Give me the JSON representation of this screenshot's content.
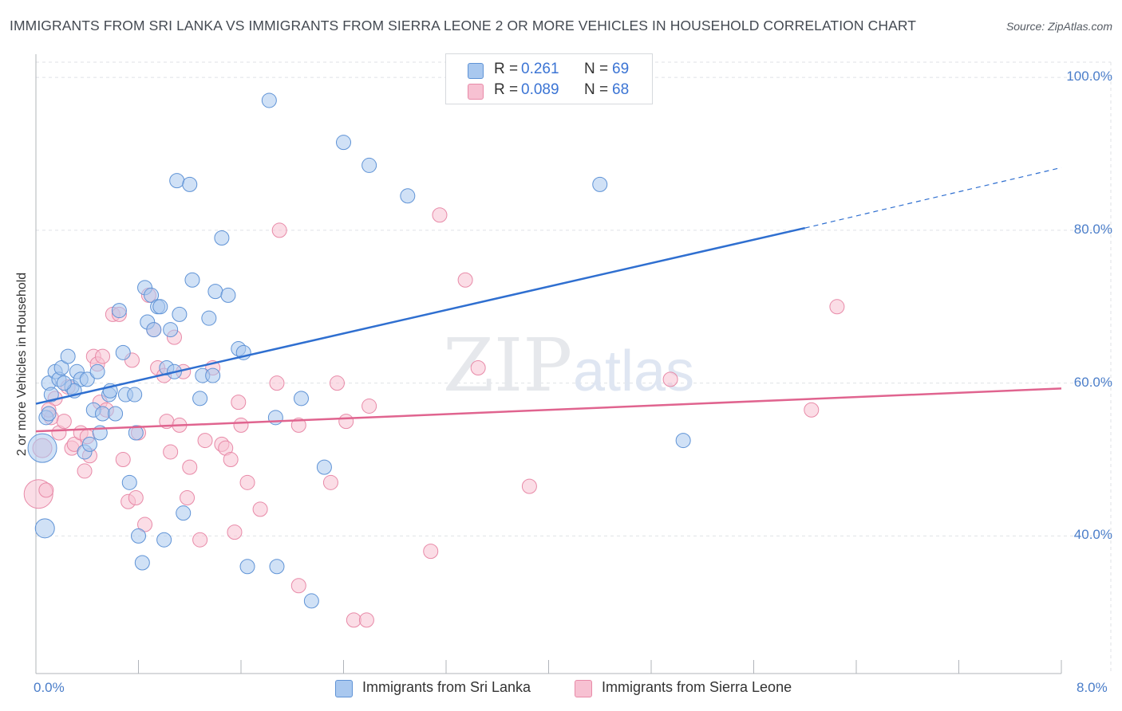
{
  "title": "IMMIGRANTS FROM SRI LANKA VS IMMIGRANTS FROM SIERRA LEONE 2 OR MORE VEHICLES IN HOUSEHOLD CORRELATION CHART",
  "source": "Source: ZipAtlas.com",
  "watermark": {
    "zip": "ZIP",
    "atlas": "atlas"
  },
  "stats": {
    "sri_lanka": {
      "r_label": "R =",
      "r_value": "0.261",
      "n_label": "N =",
      "n_value": "69"
    },
    "sierra_leone": {
      "r_label": "R =",
      "r_value": "0.089",
      "n_label": "N =",
      "n_value": "68"
    }
  },
  "legend": {
    "sri_lanka": "Immigrants from Sri Lanka",
    "sierra_leone": "Immigrants from Sierra Leone"
  },
  "colors": {
    "sri_lanka_fill": "#a9c8ef",
    "sri_lanka_stroke": "#5f93d6",
    "sri_lanka_line": "#2f6fd0",
    "sierra_leone_fill": "#f7c1d2",
    "sierra_leone_stroke": "#e88aa8",
    "sierra_leone_line": "#e0648f",
    "axis_label": "#4a7dc9",
    "grid": "#dfe2e6"
  },
  "chart_data": {
    "type": "scatter",
    "title": "IMMIGRANTS FROM SRI LANKA VS IMMIGRANTS FROM SIERRA LEONE 2 OR MORE VEHICLES IN HOUSEHOLD CORRELATION CHART",
    "xlabel": "",
    "ylabel": "2 or more Vehicles in Household",
    "xlim": [
      0,
      8
    ],
    "ylim": [
      22,
      102
    ],
    "x_tick_labels": [
      "0.0%",
      "8.0%"
    ],
    "y_ticks": [
      40,
      60,
      80,
      100
    ],
    "y_tick_labels": [
      "40.0%",
      "60.0%",
      "80.0%",
      "100.0%"
    ],
    "grid": true,
    "legend_position": "bottom",
    "series": [
      {
        "name": "Immigrants from Sri Lanka",
        "points": [
          [
            0.05,
            51.5
          ],
          [
            0.07,
            41.0
          ],
          [
            0.08,
            55.5
          ],
          [
            0.1,
            56.0
          ],
          [
            0.1,
            60.0
          ],
          [
            0.12,
            58.5
          ],
          [
            0.15,
            61.5
          ],
          [
            0.18,
            60.5
          ],
          [
            0.2,
            62.0
          ],
          [
            0.25,
            63.5
          ],
          [
            0.28,
            59.5
          ],
          [
            0.32,
            61.5
          ],
          [
            0.35,
            60.5
          ],
          [
            0.38,
            51.0
          ],
          [
            0.4,
            60.5
          ],
          [
            0.42,
            52.0
          ],
          [
            0.45,
            56.5
          ],
          [
            0.48,
            61.5
          ],
          [
            0.5,
            53.5
          ],
          [
            0.52,
            56.0
          ],
          [
            0.57,
            58.5
          ],
          [
            0.58,
            59.0
          ],
          [
            0.62,
            56.0
          ],
          [
            0.65,
            69.5
          ],
          [
            0.68,
            64.0
          ],
          [
            0.7,
            58.5
          ],
          [
            0.73,
            47.0
          ],
          [
            0.77,
            58.5
          ],
          [
            0.78,
            53.5
          ],
          [
            0.8,
            40.0
          ],
          [
            0.83,
            36.5
          ],
          [
            0.85,
            72.5
          ],
          [
            0.87,
            68.0
          ],
          [
            0.9,
            71.5
          ],
          [
            0.92,
            67.0
          ],
          [
            0.95,
            70.0
          ],
          [
            0.97,
            70.0
          ],
          [
            1.0,
            39.5
          ],
          [
            1.02,
            62.0
          ],
          [
            1.05,
            67.0
          ],
          [
            1.08,
            61.5
          ],
          [
            1.12,
            69.0
          ],
          [
            1.1,
            86.5
          ],
          [
            1.15,
            43.0
          ],
          [
            1.2,
            86.0
          ],
          [
            1.22,
            73.5
          ],
          [
            1.28,
            58.0
          ],
          [
            1.3,
            61.0
          ],
          [
            1.35,
            68.5
          ],
          [
            1.38,
            61.0
          ],
          [
            1.4,
            72.0
          ],
          [
            1.45,
            79.0
          ],
          [
            1.5,
            71.5
          ],
          [
            1.58,
            64.5
          ],
          [
            1.62,
            64.0
          ],
          [
            1.65,
            36.0
          ],
          [
            1.82,
            97.0
          ],
          [
            1.87,
            55.5
          ],
          [
            1.88,
            36.0
          ],
          [
            2.07,
            58.0
          ],
          [
            2.15,
            31.5
          ],
          [
            2.25,
            49.0
          ],
          [
            2.4,
            91.5
          ],
          [
            2.6,
            88.5
          ],
          [
            2.9,
            84.5
          ],
          [
            4.4,
            86.0
          ],
          [
            5.05,
            52.5
          ],
          [
            0.3,
            59.0
          ],
          [
            0.22,
            60.0
          ]
        ],
        "sizes": [
          18,
          12,
          9,
          9,
          9,
          9,
          9,
          9,
          9,
          9,
          9,
          9,
          9,
          9,
          9,
          9,
          9,
          9,
          9,
          9,
          9,
          9,
          9,
          9,
          9,
          9,
          9,
          9,
          9,
          9,
          9,
          9,
          9,
          9,
          9,
          9,
          9,
          9,
          9,
          9,
          9,
          9,
          9,
          9,
          9,
          9,
          9,
          9,
          9,
          9,
          9,
          9,
          9,
          9,
          9,
          9,
          9,
          9,
          9,
          9,
          9,
          9,
          9,
          9,
          9,
          9,
          9,
          9,
          9
        ],
        "trend": {
          "x0": 0.0,
          "y0": 57.3,
          "x1": 6.0,
          "y1": 80.3,
          "dashed_to_x": 8.0,
          "dashed_to_y": 88.2
        }
      },
      {
        "name": "Immigrants from Sierra Leone",
        "points": [
          [
            0.02,
            45.5
          ],
          [
            0.05,
            51.5
          ],
          [
            0.08,
            46.0
          ],
          [
            0.12,
            55.5
          ],
          [
            0.15,
            58.0
          ],
          [
            0.18,
            53.5
          ],
          [
            0.22,
            55.0
          ],
          [
            0.25,
            59.5
          ],
          [
            0.28,
            51.5
          ],
          [
            0.3,
            52.0
          ],
          [
            0.35,
            53.5
          ],
          [
            0.38,
            48.5
          ],
          [
            0.4,
            53.0
          ],
          [
            0.42,
            50.5
          ],
          [
            0.45,
            63.5
          ],
          [
            0.48,
            62.5
          ],
          [
            0.5,
            57.5
          ],
          [
            0.52,
            63.5
          ],
          [
            0.55,
            56.5
          ],
          [
            0.6,
            69.0
          ],
          [
            0.65,
            69.0
          ],
          [
            0.68,
            50.0
          ],
          [
            0.72,
            44.5
          ],
          [
            0.75,
            63.0
          ],
          [
            0.78,
            45.0
          ],
          [
            0.8,
            53.5
          ],
          [
            0.85,
            41.5
          ],
          [
            0.88,
            71.5
          ],
          [
            0.92,
            67.0
          ],
          [
            0.95,
            62.0
          ],
          [
            1.0,
            61.0
          ],
          [
            1.02,
            55.0
          ],
          [
            1.05,
            51.0
          ],
          [
            1.08,
            66.0
          ],
          [
            1.12,
            54.5
          ],
          [
            1.15,
            61.5
          ],
          [
            1.18,
            45.0
          ],
          [
            1.2,
            49.0
          ],
          [
            1.28,
            39.5
          ],
          [
            1.32,
            52.5
          ],
          [
            1.38,
            62.0
          ],
          [
            1.45,
            52.0
          ],
          [
            1.48,
            51.5
          ],
          [
            1.52,
            50.0
          ],
          [
            1.55,
            40.5
          ],
          [
            1.58,
            57.5
          ],
          [
            1.6,
            54.5
          ],
          [
            1.65,
            47.0
          ],
          [
            1.75,
            43.5
          ],
          [
            1.88,
            60.0
          ],
          [
            1.9,
            80.0
          ],
          [
            2.05,
            54.5
          ],
          [
            2.05,
            33.5
          ],
          [
            2.3,
            47.0
          ],
          [
            2.35,
            60.0
          ],
          [
            2.42,
            55.0
          ],
          [
            2.48,
            29.0
          ],
          [
            2.6,
            57.0
          ],
          [
            2.58,
            29.0
          ],
          [
            3.08,
            38.0
          ],
          [
            3.15,
            82.0
          ],
          [
            3.35,
            73.5
          ],
          [
            3.45,
            62.0
          ],
          [
            3.85,
            46.5
          ],
          [
            4.95,
            60.5
          ],
          [
            6.05,
            56.5
          ],
          [
            6.25,
            70.0
          ],
          [
            0.1,
            56.5
          ]
        ],
        "sizes": [
          18,
          12,
          9,
          9,
          9,
          9,
          9,
          9,
          9,
          9,
          9,
          9,
          9,
          9,
          9,
          9,
          9,
          9,
          9,
          9,
          9,
          9,
          9,
          9,
          9,
          9,
          9,
          9,
          9,
          9,
          9,
          9,
          9,
          9,
          9,
          9,
          9,
          9,
          9,
          9,
          9,
          9,
          9,
          9,
          9,
          9,
          9,
          9,
          9,
          9,
          9,
          9,
          9,
          9,
          9,
          9,
          9,
          9,
          9,
          9,
          9,
          9,
          9,
          9,
          9,
          9,
          9,
          9
        ],
        "trend": {
          "x0": 0.0,
          "y0": 53.7,
          "x1": 8.0,
          "y1": 59.3
        }
      }
    ]
  }
}
